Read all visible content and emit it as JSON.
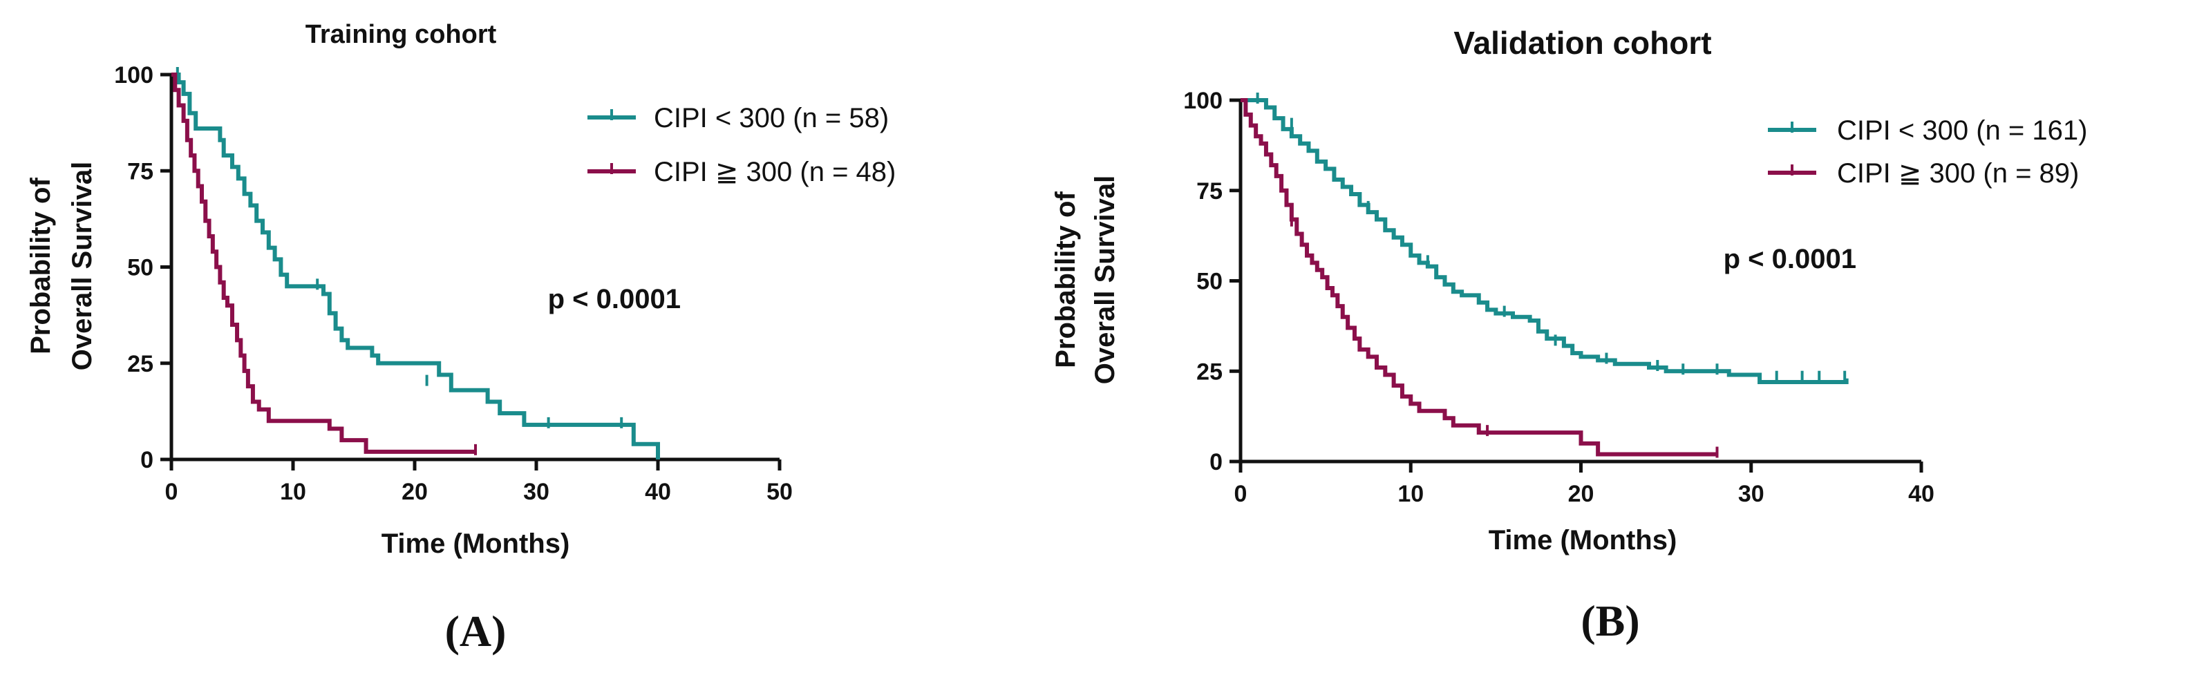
{
  "colors": {
    "low_risk": "#1a8c8c",
    "high_risk": "#8b0f4a",
    "axis": "#111111"
  },
  "chart_data": [
    {
      "type": "line",
      "subtype": "kaplan-meier",
      "panel_label": "(A)",
      "title": "Training cohort",
      "xlabel": "Time (Months)",
      "ylabel_line1": "Probability of",
      "ylabel_line2": "Overall Survival",
      "xlim": [
        0,
        50
      ],
      "ylim": [
        0,
        100
      ],
      "xticks": [
        0,
        10,
        20,
        30,
        40,
        50
      ],
      "yticks": [
        0,
        25,
        50,
        75,
        100
      ],
      "annotation": "p < 0.0001",
      "legend_position": "top-right",
      "series": [
        {
          "name": "CIPI < 300 (n = 58)",
          "color_key": "low_risk",
          "steps": [
            [
              0,
              100
            ],
            [
              0.6,
              98
            ],
            [
              1.0,
              95
            ],
            [
              1.5,
              90
            ],
            [
              2.0,
              86
            ],
            [
              4.0,
              83
            ],
            [
              4.3,
              79
            ],
            [
              5.0,
              76
            ],
            [
              5.5,
              73
            ],
            [
              6.0,
              69
            ],
            [
              6.5,
              66
            ],
            [
              7.0,
              62
            ],
            [
              7.5,
              59
            ],
            [
              8.0,
              55
            ],
            [
              8.5,
              52
            ],
            [
              9.0,
              48
            ],
            [
              9.5,
              45
            ],
            [
              12.5,
              43
            ],
            [
              13.0,
              38
            ],
            [
              13.5,
              34
            ],
            [
              14.0,
              31
            ],
            [
              14.5,
              29
            ],
            [
              16.5,
              27
            ],
            [
              17.0,
              25
            ],
            [
              22.0,
              22
            ],
            [
              23.0,
              18
            ],
            [
              26.0,
              15
            ],
            [
              27.0,
              12
            ],
            [
              29.0,
              9
            ],
            [
              38.0,
              4
            ],
            [
              40.0,
              0
            ]
          ],
          "censors": [
            [
              0.5,
              100
            ],
            [
              12,
              45
            ],
            [
              21,
              20
            ],
            [
              31,
              9
            ],
            [
              37,
              9
            ]
          ]
        },
        {
          "name": "CIPI ≧ 300 (n = 48)",
          "color_key": "high_risk",
          "steps": [
            [
              0,
              100
            ],
            [
              0.3,
              96
            ],
            [
              0.6,
              92
            ],
            [
              1.0,
              88
            ],
            [
              1.3,
              83
            ],
            [
              1.6,
              79
            ],
            [
              1.9,
              75
            ],
            [
              2.2,
              71
            ],
            [
              2.5,
              67
            ],
            [
              2.8,
              62
            ],
            [
              3.1,
              58
            ],
            [
              3.4,
              54
            ],
            [
              3.7,
              50
            ],
            [
              4.0,
              46
            ],
            [
              4.3,
              42
            ],
            [
              4.6,
              40
            ],
            [
              5.0,
              35
            ],
            [
              5.4,
              31
            ],
            [
              5.7,
              27
            ],
            [
              6.0,
              23
            ],
            [
              6.3,
              19
            ],
            [
              6.7,
              15
            ],
            [
              7.2,
              13
            ],
            [
              8.0,
              10
            ],
            [
              13.0,
              8
            ],
            [
              14.0,
              5
            ],
            [
              16.0,
              2
            ],
            [
              25.0,
              2
            ]
          ],
          "censors": [
            [
              25,
              2
            ]
          ]
        }
      ]
    },
    {
      "type": "line",
      "subtype": "kaplan-meier",
      "panel_label": "(B)",
      "title": "Validation cohort",
      "xlabel": "Time (Months)",
      "ylabel_line1": "Probability of",
      "ylabel_line2": "Overall Survival",
      "xlim": [
        0,
        40
      ],
      "ylim": [
        0,
        100
      ],
      "xticks": [
        0,
        10,
        20,
        30,
        40
      ],
      "yticks": [
        0,
        25,
        50,
        75,
        100
      ],
      "annotation": "p < 0.0001",
      "legend_position": "top-right",
      "series": [
        {
          "name": "CIPI < 300 (n = 161)",
          "color_key": "low_risk",
          "steps": [
            [
              0,
              100
            ],
            [
              1.5,
              98
            ],
            [
              2.0,
              95
            ],
            [
              2.5,
              92
            ],
            [
              3.0,
              90
            ],
            [
              3.5,
              88
            ],
            [
              4.0,
              86
            ],
            [
              4.5,
              83
            ],
            [
              5.0,
              81
            ],
            [
              5.5,
              78
            ],
            [
              6.0,
              76
            ],
            [
              6.5,
              74
            ],
            [
              7.0,
              71
            ],
            [
              7.5,
              69
            ],
            [
              8.0,
              67
            ],
            [
              8.5,
              64
            ],
            [
              9.0,
              62
            ],
            [
              9.5,
              60
            ],
            [
              10.0,
              57
            ],
            [
              10.5,
              55
            ],
            [
              11.0,
              54
            ],
            [
              11.5,
              51
            ],
            [
              12.0,
              49
            ],
            [
              12.5,
              47
            ],
            [
              13.0,
              46
            ],
            [
              14.0,
              44
            ],
            [
              14.5,
              42
            ],
            [
              15.0,
              41
            ],
            [
              16.0,
              40
            ],
            [
              17.0,
              39
            ],
            [
              17.5,
              36
            ],
            [
              18.0,
              34
            ],
            [
              19.0,
              32
            ],
            [
              19.5,
              30
            ],
            [
              20.0,
              29
            ],
            [
              21.0,
              28
            ],
            [
              22.0,
              27
            ],
            [
              24.0,
              26
            ],
            [
              25.0,
              25
            ],
            [
              28.5,
              25
            ],
            [
              28.7,
              24
            ],
            [
              30.0,
              24
            ],
            [
              30.5,
              22
            ],
            [
              35.5,
              22
            ],
            [
              35.6,
              23
            ]
          ],
          "censors": [
            [
              1,
              100
            ],
            [
              3,
              93
            ],
            [
              7.5,
              70
            ],
            [
              11,
              55
            ],
            [
              15.5,
              41
            ],
            [
              18.5,
              33
            ],
            [
              21.5,
              28
            ],
            [
              24.5,
              26
            ],
            [
              26,
              25
            ],
            [
              28,
              25
            ],
            [
              31.5,
              23
            ],
            [
              33,
              23
            ],
            [
              34,
              23
            ],
            [
              35.5,
              23
            ]
          ]
        },
        {
          "name": "CIPI ≧ 300 (n = 89)",
          "color_key": "high_risk",
          "steps": [
            [
              0,
              100
            ],
            [
              0.3,
              96
            ],
            [
              0.6,
              93
            ],
            [
              0.9,
              90
            ],
            [
              1.2,
              88
            ],
            [
              1.5,
              85
            ],
            [
              1.8,
              82
            ],
            [
              2.1,
              79
            ],
            [
              2.4,
              75
            ],
            [
              2.7,
              71
            ],
            [
              3.0,
              67
            ],
            [
              3.3,
              63
            ],
            [
              3.6,
              60
            ],
            [
              3.9,
              57
            ],
            [
              4.2,
              55
            ],
            [
              4.5,
              53
            ],
            [
              4.8,
              51
            ],
            [
              5.1,
              48
            ],
            [
              5.4,
              46
            ],
            [
              5.7,
              43
            ],
            [
              6.0,
              40
            ],
            [
              6.3,
              37
            ],
            [
              6.7,
              34
            ],
            [
              7.0,
              31
            ],
            [
              7.5,
              29
            ],
            [
              8.0,
              26
            ],
            [
              8.5,
              24
            ],
            [
              9.0,
              21
            ],
            [
              9.5,
              18
            ],
            [
              10.0,
              16
            ],
            [
              10.5,
              14
            ],
            [
              12.0,
              12
            ],
            [
              12.5,
              10
            ],
            [
              14.0,
              8
            ],
            [
              20.0,
              5
            ],
            [
              21.0,
              2
            ],
            [
              28.0,
              2
            ]
          ],
          "censors": [
            [
              3,
              66
            ],
            [
              14.5,
              8
            ],
            [
              28,
              2
            ]
          ]
        }
      ]
    }
  ]
}
